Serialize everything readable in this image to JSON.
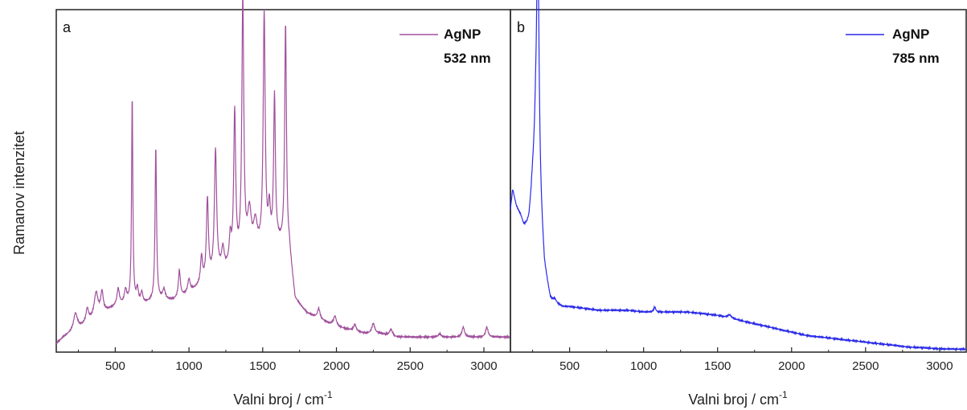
{
  "ylabel": "Ramanov intenzitet",
  "chart_data": [
    {
      "type": "line",
      "panel_label": "a",
      "xlabel": "Valni broj / cm",
      "xlabel_sup": "-1",
      "xlim": [
        100,
        3180
      ],
      "xticks": [
        500,
        1000,
        1500,
        2000,
        2500,
        3000
      ],
      "ylim": [
        0,
        100
      ],
      "legend_position": "top-right",
      "series": [
        {
          "name": "AgNP",
          "name_line2": "532 nm",
          "color": "#a0509c",
          "baseline": [
            [
              100,
              2
            ],
            [
              150,
              4
            ],
            [
              300,
              8
            ],
            [
              400,
              11
            ],
            [
              500,
              13
            ],
            [
              600,
              14
            ],
            [
              700,
              14
            ],
            [
              800,
              15
            ],
            [
              900,
              15
            ],
            [
              1000,
              17
            ],
            [
              1100,
              20
            ],
            [
              1200,
              23
            ],
            [
              1300,
              25
            ],
            [
              1400,
              28
            ],
            [
              1500,
              30
            ],
            [
              1600,
              32
            ],
            [
              1680,
              30
            ],
            [
              1720,
              15
            ],
            [
              1800,
              11
            ],
            [
              1900,
              9
            ],
            [
              2000,
              7
            ],
            [
              2100,
              6
            ],
            [
              2200,
              5
            ],
            [
              2300,
              5
            ],
            [
              2400,
              4
            ],
            [
              2500,
              4
            ],
            [
              2700,
              4
            ],
            [
              3000,
              4
            ],
            [
              3180,
              4
            ]
          ],
          "peaks": [
            [
              230,
              5,
              15
            ],
            [
              310,
              4,
              10
            ],
            [
              370,
              7,
              15
            ],
            [
              410,
              6,
              10
            ],
            [
              520,
              5,
              10
            ],
            [
              570,
              4,
              10
            ],
            [
              615,
              62,
              5
            ],
            [
              650,
              4,
              8
            ],
            [
              680,
              3,
              8
            ],
            [
              775,
              46,
              6
            ],
            [
              830,
              3,
              10
            ],
            [
              935,
              8,
              8
            ],
            [
              1000,
              4,
              10
            ],
            [
              1085,
              8,
              8
            ],
            [
              1125,
              24,
              8
            ],
            [
              1180,
              37,
              9
            ],
            [
              1230,
              6,
              10
            ],
            [
              1280,
              8,
              8
            ],
            [
              1310,
              45,
              8
            ],
            [
              1365,
              77,
              8
            ],
            [
              1410,
              12,
              15
            ],
            [
              1450,
              8,
              15
            ],
            [
              1510,
              70,
              8
            ],
            [
              1545,
              10,
              8
            ],
            [
              1580,
              44,
              7
            ],
            [
              1655,
              67,
              7
            ],
            [
              1880,
              3,
              10
            ],
            [
              1990,
              3,
              12
            ],
            [
              2125,
              2,
              10
            ],
            [
              2250,
              3,
              12
            ],
            [
              2370,
              2,
              12
            ],
            [
              2700,
              1,
              10
            ],
            [
              2860,
              3,
              10
            ],
            [
              3020,
              3,
              10
            ]
          ]
        }
      ]
    },
    {
      "type": "line",
      "panel_label": "b",
      "xlabel": "Valni broj / cm",
      "xlabel_sup": "-1",
      "xlim": [
        100,
        3180
      ],
      "xticks": [
        500,
        1000,
        1500,
        2000,
        2500,
        3000
      ],
      "ylim": [
        0,
        100
      ],
      "legend_position": "top-right",
      "series": [
        {
          "name": "AgNP",
          "name_line2": "785 nm",
          "color": "#2a2ae8",
          "baseline": [
            [
              100,
              42
            ],
            [
              115,
              48
            ],
            [
              140,
              43
            ],
            [
              170,
              40
            ],
            [
              190,
              37
            ],
            [
              210,
              37
            ],
            [
              225,
              38
            ],
            [
              240,
              43
            ],
            [
              270,
              60
            ],
            [
              330,
              24
            ],
            [
              370,
              15
            ],
            [
              400,
              14
            ],
            [
              450,
              13
            ],
            [
              500,
              13
            ],
            [
              600,
              12.5
            ],
            [
              700,
              12
            ],
            [
              800,
              12
            ],
            [
              900,
              12
            ],
            [
              1000,
              11.5
            ],
            [
              1100,
              11.5
            ],
            [
              1200,
              11.5
            ],
            [
              1300,
              11.5
            ],
            [
              1400,
              11
            ],
            [
              1500,
              10.5
            ],
            [
              1600,
              9.5
            ],
            [
              1700,
              8.5
            ],
            [
              1800,
              7.5
            ],
            [
              1900,
              6.5
            ],
            [
              2000,
              5.5
            ],
            [
              2100,
              4.5
            ],
            [
              2200,
              4
            ],
            [
              2300,
              3.5
            ],
            [
              2400,
              3
            ],
            [
              2500,
              2.5
            ],
            [
              2600,
              2
            ],
            [
              2700,
              1.5
            ],
            [
              2800,
              1
            ],
            [
              2900,
              0.8
            ],
            [
              3000,
              0.5
            ],
            [
              3100,
              0.4
            ],
            [
              3180,
              0.4
            ]
          ],
          "peaks": [
            [
              245,
              3,
              15
            ],
            [
              285,
              74,
              10
            ],
            [
              400,
              1,
              12
            ],
            [
              1075,
              1.5,
              8
            ],
            [
              1580,
              1,
              15
            ]
          ]
        }
      ]
    }
  ]
}
